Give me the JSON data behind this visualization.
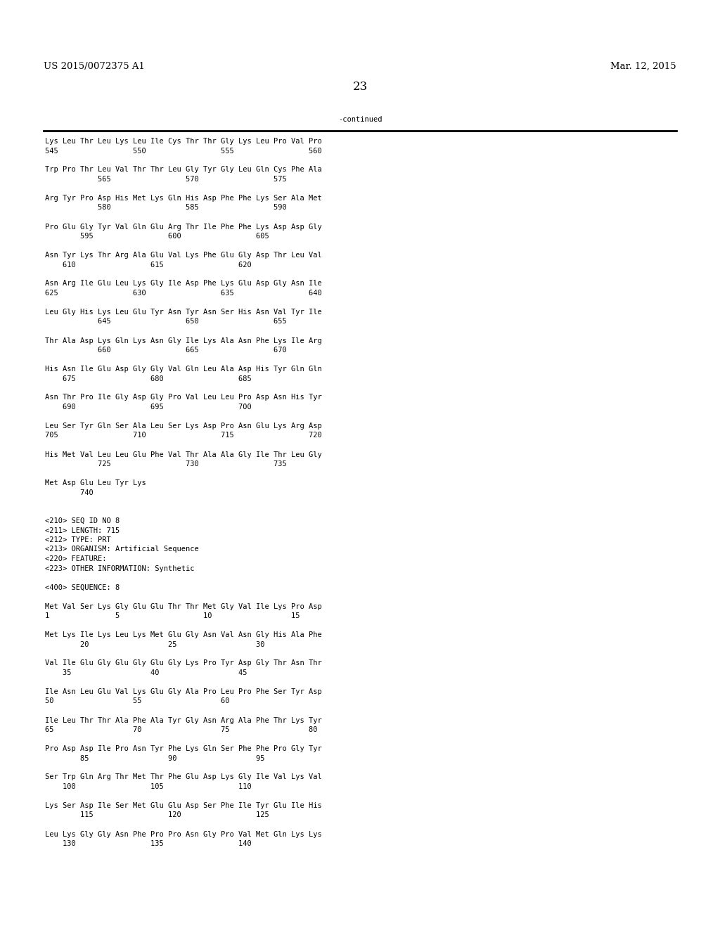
{
  "header_left": "US 2015/0072375 A1",
  "header_right": "Mar. 12, 2015",
  "page_number": "23",
  "continued_label": "-continued",
  "background_color": "#ffffff",
  "text_color": "#000000",
  "font_size": 7.5,
  "header_font_size": 9.5,
  "page_num_font_size": 12,
  "content_lines": [
    "Lys Leu Thr Leu Lys Leu Ile Cys Thr Thr Gly Lys Leu Pro Val Pro",
    "545                 550                 555                 560",
    "",
    "Trp Pro Thr Leu Val Thr Thr Leu Gly Tyr Gly Leu Gln Cys Phe Ala",
    "            565                 570                 575",
    "",
    "Arg Tyr Pro Asp His Met Lys Gln His Asp Phe Phe Lys Ser Ala Met",
    "            580                 585                 590",
    "",
    "Pro Glu Gly Tyr Val Gln Glu Arg Thr Ile Phe Phe Lys Asp Asp Gly",
    "        595                 600                 605",
    "",
    "Asn Tyr Lys Thr Arg Ala Glu Val Lys Phe Glu Gly Asp Thr Leu Val",
    "    610                 615                 620",
    "",
    "Asn Arg Ile Glu Leu Lys Gly Ile Asp Phe Lys Glu Asp Gly Asn Ile",
    "625                 630                 635                 640",
    "",
    "Leu Gly His Lys Leu Glu Tyr Asn Tyr Asn Ser His Asn Val Tyr Ile",
    "            645                 650                 655",
    "",
    "Thr Ala Asp Lys Gln Lys Asn Gly Ile Lys Ala Asn Phe Lys Ile Arg",
    "            660                 665                 670",
    "",
    "His Asn Ile Glu Asp Gly Gly Val Gln Leu Ala Asp His Tyr Gln Gln",
    "    675                 680                 685",
    "",
    "Asn Thr Pro Ile Gly Asp Gly Pro Val Leu Leu Pro Asp Asn His Tyr",
    "    690                 695                 700",
    "",
    "Leu Ser Tyr Gln Ser Ala Leu Ser Lys Asp Pro Asn Glu Lys Arg Asp",
    "705                 710                 715                 720",
    "",
    "His Met Val Leu Leu Glu Phe Val Thr Ala Ala Gly Ile Thr Leu Gly",
    "            725                 730                 735",
    "",
    "Met Asp Glu Leu Tyr Lys",
    "        740",
    "",
    "",
    "<210> SEQ ID NO 8",
    "<211> LENGTH: 715",
    "<212> TYPE: PRT",
    "<213> ORGANISM: Artificial Sequence",
    "<220> FEATURE:",
    "<223> OTHER INFORMATION: Synthetic",
    "",
    "<400> SEQUENCE: 8",
    "",
    "Met Val Ser Lys Gly Glu Glu Thr Thr Met Gly Val Ile Lys Pro Asp",
    "1               5                   10                  15",
    "",
    "Met Lys Ile Lys Leu Lys Met Glu Gly Asn Val Asn Gly His Ala Phe",
    "        20                  25                  30",
    "",
    "Val Ile Glu Gly Glu Gly Glu Gly Lys Pro Tyr Asp Gly Thr Asn Thr",
    "    35                  40                  45",
    "",
    "Ile Asn Leu Glu Val Lys Glu Gly Ala Pro Leu Pro Phe Ser Tyr Asp",
    "50                  55                  60",
    "",
    "Ile Leu Thr Thr Ala Phe Ala Tyr Gly Asn Arg Ala Phe Thr Lys Tyr",
    "65                  70                  75                  80",
    "",
    "Pro Asp Asp Ile Pro Asn Tyr Phe Lys Gln Ser Phe Phe Pro Gly Tyr",
    "        85                  90                  95",
    "",
    "Ser Trp Gln Arg Thr Met Thr Phe Glu Asp Lys Gly Ile Val Lys Val",
    "    100                 105                 110",
    "",
    "Lys Ser Asp Ile Ser Met Glu Glu Asp Ser Phe Ile Tyr Glu Ile His",
    "        115                 120                 125",
    "",
    "Leu Lys Gly Gly Asn Phe Pro Pro Asn Gly Pro Val Met Gln Lys Lys",
    "    130                 135                 140"
  ]
}
